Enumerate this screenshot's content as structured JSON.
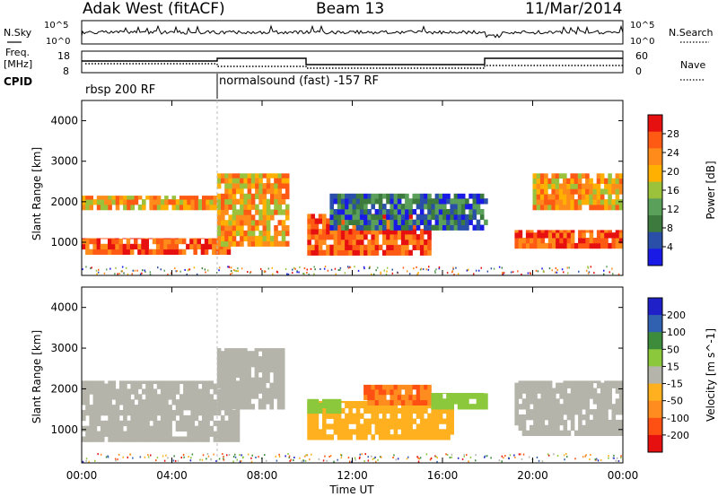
{
  "header": {
    "title": "Adak West (fitACF)",
    "beam": "Beam 13",
    "date": "11/Mar/2014"
  },
  "noise_panel": {
    "left_label": "N.Sky",
    "right_label": "N.Search",
    "left_ticks": [
      "10^5",
      "10^0"
    ],
    "right_ticks": [
      "10^5",
      "10^0"
    ]
  },
  "freq_panel": {
    "left_label_line1": "Freq.",
    "left_label_line2": "[MHz]",
    "right_label": "Nave",
    "left_ticks": [
      "18",
      "8"
    ],
    "right_ticks": [
      "60",
      "0"
    ]
  },
  "cpid": {
    "label": "CPID",
    "segments": [
      {
        "name": "rbsp 200 RF",
        "start_hour": 0,
        "end_hour": 6
      },
      {
        "name": "normalsound (fast) -157 RF",
        "start_hour": 6,
        "end_hour": 24
      }
    ]
  },
  "power_scale": {
    "label": "Power [dB]",
    "ticks": [
      "28",
      "24",
      "20",
      "16",
      "12",
      "8",
      "4"
    ],
    "colors": [
      "#1a1ae6",
      "#2a4fa8",
      "#3d7a3d",
      "#5aa05a",
      "#9bc23a",
      "#ffb000",
      "#ff8c1a",
      "#ff5a14",
      "#e61010"
    ]
  },
  "velocity_scale": {
    "label": "Velocity [m s^-1]",
    "ticks": [
      "200",
      "100",
      "50",
      "15",
      "-15",
      "-50",
      "-100",
      "-200"
    ],
    "colors": [
      "#2020c8",
      "#3060b0",
      "#3c8c3c",
      "#8cc83c",
      "#b4b4aa",
      "#ffb01e",
      "#ff8c1e",
      "#ff5014",
      "#e61010"
    ]
  },
  "chart_data": [
    {
      "type": "heatmap",
      "title": "",
      "parameter": "Power",
      "xlabel": "",
      "ylabel": "Slant Range [km]",
      "xlim": [
        0,
        24
      ],
      "ylim": [
        180,
        4500
      ],
      "yticks": [
        "1000",
        "2000",
        "3000",
        "4000"
      ],
      "xticks": [
        "00:00",
        "04:00",
        "08:00",
        "12:00",
        "16:00",
        "20:00",
        "00:00"
      ],
      "bands": [
        {
          "t0": 0.0,
          "t1": 6.6,
          "r0": 700,
          "r1": 1100,
          "level": "high"
        },
        {
          "t0": 0.0,
          "t1": 6.0,
          "r0": 1800,
          "r1": 2150,
          "level": "mid"
        },
        {
          "t0": 6.0,
          "t1": 9.2,
          "r0": 900,
          "r1": 2700,
          "level": "mid"
        },
        {
          "t0": 10.0,
          "t1": 15.5,
          "r0": 680,
          "r1": 1700,
          "level": "high"
        },
        {
          "t0": 11.0,
          "t1": 18.0,
          "r0": 1300,
          "r1": 2200,
          "level": "low"
        },
        {
          "t0": 19.2,
          "t1": 24.0,
          "r0": 850,
          "r1": 1300,
          "level": "high"
        },
        {
          "t0": 20.0,
          "t1": 24.0,
          "r0": 1800,
          "r1": 2700,
          "level": "mid"
        }
      ]
    },
    {
      "type": "heatmap",
      "title": "",
      "parameter": "Velocity",
      "xlabel": "Time UT",
      "ylabel": "Slant Range [km]",
      "xlim": [
        0,
        24
      ],
      "ylim": [
        180,
        4500
      ],
      "yticks": [
        "1000",
        "2000",
        "3000",
        "4000"
      ],
      "xticks": [
        "00:00",
        "04:00",
        "08:00",
        "12:00",
        "16:00",
        "20:00",
        "00:00"
      ],
      "bands": [
        {
          "t0": 0.0,
          "t1": 7.0,
          "r0": 700,
          "r1": 2200,
          "level": "gray"
        },
        {
          "t0": 6.0,
          "t1": 9.0,
          "r0": 1500,
          "r1": 3000,
          "level": "gray"
        },
        {
          "t0": 10.0,
          "t1": 16.5,
          "r0": 750,
          "r1": 1700,
          "level": "orange"
        },
        {
          "t0": 12.5,
          "t1": 15.5,
          "r0": 1600,
          "r1": 2100,
          "level": "dorange"
        },
        {
          "t0": 10.0,
          "t1": 11.5,
          "r0": 1400,
          "r1": 1750,
          "level": "green"
        },
        {
          "t0": 15.5,
          "t1": 18.0,
          "r0": 1500,
          "r1": 1900,
          "level": "green"
        },
        {
          "t0": 19.2,
          "t1": 24.0,
          "r0": 850,
          "r1": 2200,
          "level": "gray"
        }
      ]
    }
  ]
}
